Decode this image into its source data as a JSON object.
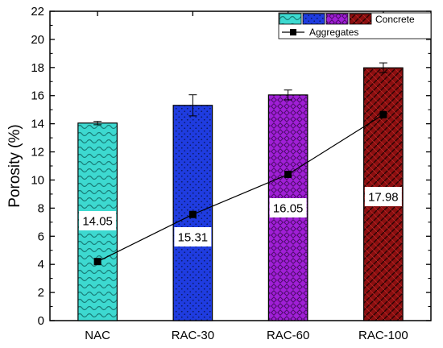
{
  "chart_data": {
    "type": "bar",
    "xlabel": "",
    "ylabel": "Porosity (%)",
    "ylim": [
      0,
      22
    ],
    "yticks": [
      0,
      2,
      4,
      6,
      8,
      10,
      12,
      14,
      16,
      18,
      20,
      22
    ],
    "categories": [
      "NAC",
      "RAC-30",
      "RAC-60",
      "RAC-100"
    ],
    "series": [
      {
        "name": "Concrete",
        "type": "bar",
        "values": [
          14.05,
          15.31,
          16.05,
          17.98
        ],
        "errors": [
          0.12,
          0.75,
          0.35,
          0.35
        ],
        "value_labels": [
          "14.05",
          "15.31",
          "16.05",
          "17.98"
        ],
        "colors": [
          "#3dd9d0",
          "#1f3ce0",
          "#a01fd6",
          "#8b0f10"
        ],
        "patterns": [
          "wave",
          "dots",
          "diamond",
          "weave"
        ]
      },
      {
        "name": "Aggregates",
        "type": "line",
        "values": [
          4.2,
          7.55,
          10.4,
          14.65
        ],
        "color": "#000000",
        "marker": "square"
      }
    ],
    "legend": {
      "position": "top-right",
      "entries": [
        "Concrete",
        "Aggregates"
      ]
    },
    "grid": false
  }
}
